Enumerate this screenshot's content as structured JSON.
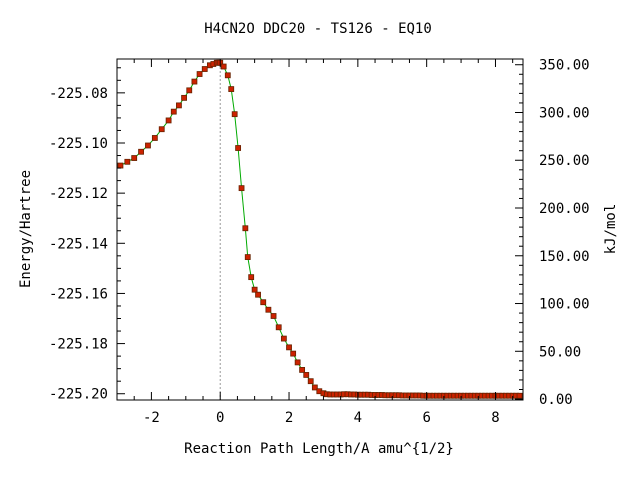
{
  "chart_data": {
    "type": "line",
    "title": "H4CN2O   DDC20 - TS126 - EQ10",
    "xlabel": "Reaction Path Length/A amu^{1/2}",
    "ylabel": "Energy/Hartree",
    "y2label": "kJ/mol",
    "xlim": [
      -3.0,
      8.8
    ],
    "ylim": [
      -225.2025,
      -225.0665
    ],
    "y2lim": [
      -1.0,
      356.0
    ],
    "x_ticks": [
      -2,
      0,
      2,
      4,
      6,
      8
    ],
    "x_tick_labels": [
      "-2",
      "0",
      "2",
      "4",
      "6",
      "8"
    ],
    "y_ticks": [
      -225.08,
      -225.1,
      -225.12,
      -225.14,
      -225.16,
      -225.18,
      -225.2
    ],
    "y_tick_labels": [
      "-225.08",
      "-225.10",
      "-225.12",
      "-225.14",
      "-225.16",
      "-225.18",
      "-225.20"
    ],
    "y2_ticks": [
      350,
      300,
      250,
      200,
      150,
      100,
      50,
      0
    ],
    "y2_tick_labels": [
      "350.00",
      "300.00",
      "250.00",
      "200.00",
      "150.00",
      "100.00",
      "50.00",
      "0.00"
    ],
    "ts_marker_x": 0,
    "grid": false,
    "line_color": "#00aa00",
    "marker_color": "#cc2200",
    "marker_edge_color": "#662200",
    "series": [
      {
        "x": [
          -2.9,
          -2.7,
          -2.5,
          -2.3,
          -2.1,
          -1.9,
          -1.7,
          -1.5,
          -1.35,
          -1.2,
          -1.05,
          -0.9,
          -0.75,
          -0.6,
          -0.45,
          -0.3,
          -0.2,
          -0.1,
          -0.05,
          0.0,
          0.1,
          0.22,
          0.32,
          0.42,
          0.52,
          0.62,
          0.73,
          0.8,
          0.9,
          1.0,
          1.1,
          1.25,
          1.4,
          1.55,
          1.7,
          1.85,
          2.0,
          2.12,
          2.25,
          2.38,
          2.5,
          2.63,
          2.75,
          2.88,
          3.0,
          3.1,
          3.2,
          3.3,
          3.4,
          3.5,
          3.6,
          3.7,
          3.8,
          3.9,
          4.0,
          4.1,
          4.2,
          4.3,
          4.4,
          4.5,
          4.6,
          4.7,
          4.8,
          4.9,
          5.0,
          5.1,
          5.2,
          5.3,
          5.4,
          5.5,
          5.6,
          5.7,
          5.8,
          5.9,
          6.0,
          6.1,
          6.2,
          6.3,
          6.4,
          6.5,
          6.6,
          6.7,
          6.8,
          6.9,
          7.0,
          7.1,
          7.2,
          7.3,
          7.4,
          7.5,
          7.6,
          7.7,
          7.8,
          7.9,
          8.0,
          8.1,
          8.2,
          8.3,
          8.4,
          8.5,
          8.6,
          8.7
        ],
        "y": [
          -225.109,
          -225.1075,
          -225.106,
          -225.1035,
          -225.101,
          -225.098,
          -225.0945,
          -225.091,
          -225.0875,
          -225.085,
          -225.082,
          -225.079,
          -225.0755,
          -225.0725,
          -225.0705,
          -225.069,
          -225.0685,
          -225.068,
          -225.068,
          -225.068,
          -225.0695,
          -225.073,
          -225.0785,
          -225.0885,
          -225.102,
          -225.118,
          -225.134,
          -225.1455,
          -225.1535,
          -225.1585,
          -225.1605,
          -225.1635,
          -225.1665,
          -225.169,
          -225.1735,
          -225.178,
          -225.1815,
          -225.184,
          -225.1875,
          -225.1905,
          -225.1925,
          -225.195,
          -225.1975,
          -225.199,
          -225.1998,
          -225.2002,
          -225.2003,
          -225.2003,
          -225.2003,
          -225.2003,
          -225.2002,
          -225.2002,
          -225.2003,
          -225.2003,
          -225.2004,
          -225.2004,
          -225.2004,
          -225.2004,
          -225.2005,
          -225.2005,
          -225.2005,
          -225.2005,
          -225.2006,
          -225.2006,
          -225.2006,
          -225.2006,
          -225.2006,
          -225.2007,
          -225.2007,
          -225.2007,
          -225.2007,
          -225.2007,
          -225.2007,
          -225.2008,
          -225.2008,
          -225.2008,
          -225.2008,
          -225.2008,
          -225.2008,
          -225.2008,
          -225.2008,
          -225.2008,
          -225.2008,
          -225.2008,
          -225.2008,
          -225.2008,
          -225.2008,
          -225.2008,
          -225.2008,
          -225.2008,
          -225.2008,
          -225.2008,
          -225.2008,
          -225.2008,
          -225.2008,
          -225.2008,
          -225.2008,
          -225.2008,
          -225.2008,
          -225.2008,
          -225.2008,
          -225.2008
        ]
      }
    ]
  }
}
